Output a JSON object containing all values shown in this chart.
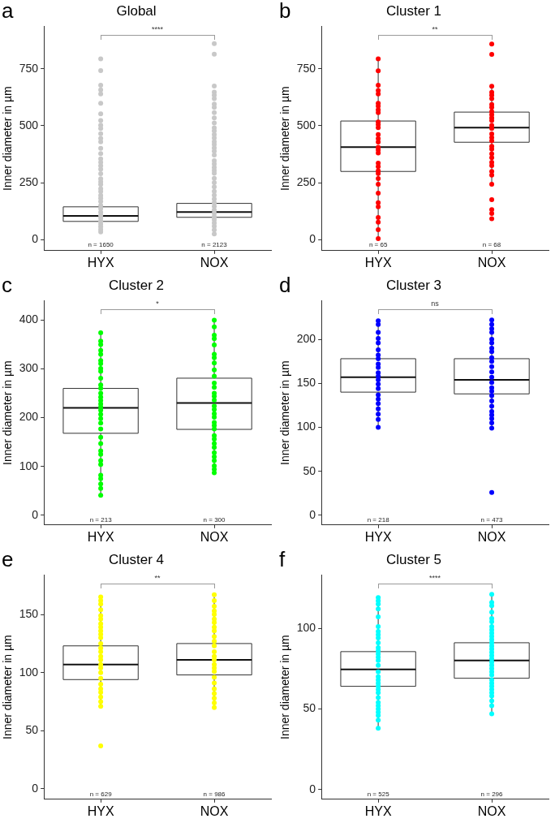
{
  "chart_data": [
    {
      "type": "box",
      "title": "Global",
      "ylabel": "Inner diameter in µm",
      "categories": [
        "HYX",
        "NOX"
      ],
      "ylim": [
        -47,
        936
      ],
      "yticks": [
        0,
        250,
        500,
        750
      ],
      "grid": false,
      "legend": false,
      "marker": "circle",
      "annotations": [
        "a",
        "****",
        "n = 1650",
        "n = 2123"
      ],
      "boxes": [
        {
          "low": 35,
          "q1": 81,
          "median": 105,
          "q3": 145,
          "high": 235
        },
        {
          "low": 26,
          "q1": 99,
          "median": 122,
          "q3": 160,
          "high": 250
        }
      ],
      "series": [
        {
          "type": "scatter",
          "color": "#c8c8c8",
          "x": [
            "HYX",
            "HYX",
            "HYX",
            "HYX",
            "HYX",
            "HYX",
            "HYX",
            "HYX",
            "HYX",
            "HYX",
            "HYX",
            "HYX",
            "HYX",
            "HYX",
            "HYX",
            "HYX",
            "HYX",
            "HYX",
            "HYX",
            "HYX",
            "HYX",
            "HYX",
            "HYX",
            "HYX",
            "HYX",
            "HYX",
            "HYX",
            "HYX",
            "HYX",
            "HYX",
            "HYX",
            "HYX",
            "HYX",
            "HYX",
            "HYX",
            "HYX",
            "HYX",
            "HYX"
          ],
          "values": [
            793,
            742,
            678,
            657,
            640,
            599,
            552,
            523,
            503,
            488,
            465,
            445,
            430,
            401,
            378,
            355,
            340,
            325,
            310,
            290,
            268,
            255,
            243,
            224,
            212,
            195,
            183,
            168,
            151,
            137,
            121,
            108,
            96,
            83,
            70,
            58,
            46,
            35
          ]
        },
        {
          "type": "scatter",
          "color": "#c8c8c8",
          "x": [
            "NOX",
            "NOX",
            "NOX",
            "NOX",
            "NOX",
            "NOX",
            "NOX",
            "NOX",
            "NOX",
            "NOX",
            "NOX",
            "NOX",
            "NOX",
            "NOX",
            "NOX",
            "NOX",
            "NOX",
            "NOX",
            "NOX",
            "NOX",
            "NOX",
            "NOX",
            "NOX",
            "NOX",
            "NOX",
            "NOX",
            "NOX",
            "NOX",
            "NOX",
            "NOX",
            "NOX",
            "NOX",
            "NOX",
            "NOX",
            "NOX",
            "NOX",
            "NOX",
            "NOX",
            "NOX",
            "NOX",
            "NOX"
          ],
          "values": [
            860,
            814,
            674,
            648,
            634,
            619,
            595,
            581,
            558,
            535,
            512,
            491,
            478,
            462,
            447,
            431,
            418,
            403,
            389,
            372,
            347,
            333,
            318,
            304,
            292,
            270,
            251,
            232,
            213,
            196,
            179,
            163,
            147,
            131,
            117,
            102,
            88,
            74,
            60,
            44,
            26
          ]
        }
      ]
    },
    {
      "type": "box",
      "title": "Cluster 1",
      "ylabel": "Inner diameter in µm",
      "categories": [
        "HYX",
        "NOX"
      ],
      "ylim": [
        -47,
        936
      ],
      "yticks": [
        0,
        250,
        500,
        750
      ],
      "grid": false,
      "legend": false,
      "marker": "circle",
      "annotations": [
        "b",
        "**",
        "n = 65",
        "n = 68"
      ],
      "boxes": [
        {
          "low": 6,
          "q1": 300,
          "median": 407,
          "q3": 521,
          "high": 793
        },
        {
          "low": 244,
          "q1": 428,
          "median": 492,
          "q3": 560,
          "high": 673
        }
      ],
      "series": [
        {
          "type": "scatter",
          "color": "#ff0000",
          "x": [
            "HYX",
            "HYX",
            "HYX",
            "HYX",
            "HYX",
            "HYX",
            "HYX",
            "HYX",
            "HYX",
            "HYX",
            "HYX",
            "HYX",
            "HYX",
            "HYX",
            "HYX",
            "HYX",
            "HYX",
            "HYX",
            "HYX",
            "HYX",
            "HYX",
            "HYX",
            "HYX",
            "HYX",
            "HYX",
            "HYX",
            "HYX",
            "HYX",
            "HYX",
            "HYX",
            "HYX"
          ],
          "values": [
            793,
            741,
            678,
            655,
            640,
            599,
            586,
            570,
            558,
            517,
            505,
            492,
            462,
            444,
            429,
            406,
            394,
            381,
            336,
            321,
            303,
            291,
            269,
            244,
            205,
            163,
            145,
            98,
            78,
            45,
            6
          ]
        },
        {
          "type": "scatter",
          "color": "#ff0000",
          "x": [
            "NOX",
            "NOX",
            "NOX",
            "NOX",
            "NOX",
            "NOX",
            "NOX",
            "NOX",
            "NOX",
            "NOX",
            "NOX",
            "NOX",
            "NOX",
            "NOX",
            "NOX",
            "NOX",
            "NOX",
            "NOX",
            "NOX",
            "NOX",
            "NOX",
            "NOX",
            "NOX",
            "NOX",
            "NOX",
            "NOX",
            "NOX",
            "NOX",
            "NOX",
            "NOX"
          ],
          "values": [
            858,
            813,
            673,
            647,
            634,
            619,
            593,
            581,
            562,
            549,
            535,
            523,
            502,
            488,
            464,
            448,
            434,
            410,
            398,
            377,
            360,
            340,
            326,
            300,
            284,
            244,
            176,
            133,
            116,
            93
          ]
        }
      ]
    },
    {
      "type": "box",
      "title": "Cluster 2",
      "ylabel": "Inner diameter in µm",
      "categories": [
        "HYX",
        "NOX"
      ],
      "ylim": [
        -20,
        440
      ],
      "yticks": [
        0,
        100,
        200,
        300,
        400
      ],
      "grid": false,
      "legend": false,
      "marker": "circle",
      "annotations": [
        "c",
        "*",
        "n = 213",
        "n = 300"
      ],
      "boxes": [
        {
          "low": 41,
          "q1": 168,
          "median": 220,
          "q3": 260,
          "high": 374
        },
        {
          "low": 87,
          "q1": 176,
          "median": 230,
          "q3": 281,
          "high": 400
        }
      ],
      "series": [
        {
          "type": "scatter",
          "color": "#00ff00",
          "x": [
            "HYX",
            "HYX",
            "HYX",
            "HYX",
            "HYX",
            "HYX",
            "HYX",
            "HYX",
            "HYX",
            "HYX",
            "HYX",
            "HYX",
            "HYX",
            "HYX",
            "HYX",
            "HYX",
            "HYX",
            "HYX",
            "HYX",
            "HYX",
            "HYX",
            "HYX",
            "HYX",
            "HYX",
            "HYX",
            "HYX",
            "HYX",
            "HYX",
            "HYX",
            "HYX",
            "HYX",
            "HYX",
            "HYX"
          ],
          "values": [
            374,
            357,
            350,
            338,
            330,
            317,
            311,
            301,
            295,
            281,
            267,
            260,
            250,
            242,
            235,
            228,
            222,
            215,
            207,
            198,
            189,
            177,
            160,
            147,
            132,
            125,
            112,
            104,
            82,
            75,
            64,
            55,
            41
          ]
        },
        {
          "type": "scatter",
          "color": "#00ff00",
          "x": [
            "NOX",
            "NOX",
            "NOX",
            "NOX",
            "NOX",
            "NOX",
            "NOX",
            "NOX",
            "NOX",
            "NOX",
            "NOX",
            "NOX",
            "NOX",
            "NOX",
            "NOX",
            "NOX",
            "NOX",
            "NOX",
            "NOX",
            "NOX",
            "NOX",
            "NOX",
            "NOX",
            "NOX",
            "NOX",
            "NOX",
            "NOX",
            "NOX",
            "NOX",
            "NOX",
            "NOX",
            "NOX"
          ],
          "values": [
            400,
            386,
            369,
            362,
            349,
            330,
            323,
            312,
            298,
            285,
            271,
            262,
            250,
            244,
            236,
            224,
            217,
            208,
            201,
            190,
            184,
            177,
            163,
            156,
            147,
            139,
            128,
            120,
            112,
            101,
            94,
            87
          ]
        }
      ]
    },
    {
      "type": "box",
      "title": "Cluster 3",
      "ylabel": "Inner diameter in µm",
      "categories": [
        "HYX",
        "NOX"
      ],
      "ylim": [
        -11,
        244
      ],
      "yticks": [
        0,
        50,
        100,
        150,
        200
      ],
      "grid": false,
      "legend": false,
      "marker": "circle",
      "annotations": [
        "d",
        "ns",
        "n = 218",
        "n = 473"
      ],
      "boxes": [
        {
          "low": 100,
          "q1": 140,
          "median": 157,
          "q3": 178,
          "high": 221
        },
        {
          "low": 99,
          "q1": 138,
          "median": 154,
          "q3": 178,
          "high": 222
        }
      ],
      "series": [
        {
          "type": "scatter",
          "color": "#0000ff",
          "x": [
            "HYX",
            "HYX",
            "HYX",
            "HYX",
            "HYX",
            "HYX",
            "HYX",
            "HYX",
            "HYX",
            "HYX",
            "HYX",
            "HYX",
            "HYX",
            "HYX",
            "HYX",
            "HYX",
            "HYX",
            "HYX",
            "HYX",
            "HYX",
            "HYX",
            "HYX"
          ],
          "values": [
            221,
            217,
            208,
            201,
            196,
            188,
            182,
            178,
            172,
            168,
            162,
            158,
            154,
            149,
            144,
            137,
            132,
            127,
            121,
            115,
            109,
            100
          ]
        },
        {
          "type": "scatter",
          "color": "#0000ff",
          "x": [
            "NOX",
            "NOX",
            "NOX",
            "NOX",
            "NOX",
            "NOX",
            "NOX",
            "NOX",
            "NOX",
            "NOX",
            "NOX",
            "NOX",
            "NOX",
            "NOX",
            "NOX",
            "NOX",
            "NOX",
            "NOX",
            "NOX",
            "NOX",
            "NOX",
            "NOX",
            "NOX",
            "NOX",
            "NOX"
          ],
          "values": [
            222,
            217,
            212,
            208,
            200,
            196,
            190,
            186,
            179,
            175,
            169,
            163,
            157,
            151,
            145,
            141,
            136,
            130,
            124,
            118,
            114,
            110,
            105,
            99,
            26
          ]
        }
      ]
    },
    {
      "type": "box",
      "title": "Cluster 4",
      "ylabel": "Inner diameter in µm",
      "categories": [
        "HYX",
        "NOX"
      ],
      "ylim": [
        -9,
        184
      ],
      "yticks": [
        0,
        50,
        100,
        150
      ],
      "grid": false,
      "legend": false,
      "marker": "circle",
      "annotations": [
        "e",
        "**",
        "n = 629",
        "n = 986"
      ],
      "boxes": [
        {
          "low": 71,
          "q1": 94,
          "median": 107,
          "q3": 123,
          "high": 165
        },
        {
          "low": 70,
          "q1": 98,
          "median": 111,
          "q3": 125,
          "high": 165
        }
      ],
      "series": [
        {
          "type": "scatter",
          "color": "#ffff00",
          "x": [
            "HYX",
            "HYX",
            "HYX",
            "HYX",
            "HYX",
            "HYX",
            "HYX",
            "HYX",
            "HYX",
            "HYX",
            "HYX",
            "HYX",
            "HYX",
            "HYX",
            "HYX",
            "HYX",
            "HYX",
            "HYX",
            "HYX",
            "HYX",
            "HYX",
            "HYX",
            "HYX",
            "HYX",
            "HYX",
            "HYX",
            "HYX"
          ],
          "values": [
            165,
            162,
            159,
            154,
            149,
            146,
            142,
            139,
            136,
            133,
            130,
            125,
            121,
            118,
            114,
            111,
            107,
            104,
            100,
            95,
            90,
            86,
            83,
            79,
            75,
            71,
            37
          ]
        },
        {
          "type": "scatter",
          "color": "#ffff00",
          "x": [
            "NOX",
            "NOX",
            "NOX",
            "NOX",
            "NOX",
            "NOX",
            "NOX",
            "NOX",
            "NOX",
            "NOX",
            "NOX",
            "NOX",
            "NOX",
            "NOX",
            "NOX",
            "NOX",
            "NOX",
            "NOX",
            "NOX",
            "NOX",
            "NOX",
            "NOX",
            "NOX",
            "NOX",
            "NOX"
          ],
          "values": [
            167,
            162,
            157,
            153,
            150,
            146,
            143,
            139,
            136,
            131,
            127,
            123,
            118,
            114,
            111,
            107,
            104,
            101,
            96,
            91,
            86,
            82,
            78,
            74,
            70
          ]
        }
      ]
    },
    {
      "type": "box",
      "title": "Cluster 5",
      "ylabel": "Inner diameter in µm",
      "categories": [
        "HYX",
        "NOX"
      ],
      "ylim": [
        -6,
        133
      ],
      "yticks": [
        0,
        50,
        100
      ],
      "grid": false,
      "legend": false,
      "marker": "circle",
      "annotations": [
        "f",
        "****",
        "n = 525",
        "n = 296"
      ],
      "boxes": [
        {
          "low": 38,
          "q1": 64,
          "median": 74.5,
          "q3": 85.5,
          "high": 117
        },
        {
          "low": 47,
          "q1": 69,
          "median": 80,
          "q3": 91,
          "high": 121
        }
      ],
      "series": [
        {
          "type": "scatter",
          "color": "#00ffff",
          "x": [
            "HYX",
            "HYX",
            "HYX",
            "HYX",
            "HYX",
            "HYX",
            "HYX",
            "HYX",
            "HYX",
            "HYX",
            "HYX",
            "HYX",
            "HYX",
            "HYX",
            "HYX",
            "HYX",
            "HYX",
            "HYX",
            "HYX",
            "HYX",
            "HYX",
            "HYX",
            "HYX",
            "HYX",
            "HYX",
            "HYX",
            "HYX",
            "HYX",
            "HYX",
            "HYX",
            "HYX"
          ],
          "values": [
            119,
            117,
            115,
            112,
            107,
            101,
            98,
            96,
            94,
            91,
            88,
            86,
            84,
            82,
            80,
            77,
            73,
            70,
            68,
            66,
            64,
            62,
            60,
            57,
            54,
            52,
            50,
            48,
            46,
            43,
            38
          ]
        },
        {
          "type": "scatter",
          "color": "#00ffff",
          "x": [
            "NOX",
            "NOX",
            "NOX",
            "NOX",
            "NOX",
            "NOX",
            "NOX",
            "NOX",
            "NOX",
            "NOX",
            "NOX",
            "NOX",
            "NOX",
            "NOX",
            "NOX",
            "NOX",
            "NOX",
            "NOX",
            "NOX",
            "NOX",
            "NOX",
            "NOX",
            "NOX",
            "NOX",
            "NOX",
            "NOX",
            "NOX",
            "NOX",
            "NOX",
            "NOX",
            "NOX"
          ],
          "values": [
            121,
            116,
            114,
            110,
            106,
            104,
            101,
            99,
            97,
            95,
            93,
            91,
            89,
            87,
            85,
            83,
            81,
            79,
            77,
            75,
            73,
            71,
            68,
            66,
            64,
            62,
            60,
            58,
            55,
            52,
            47
          ]
        }
      ]
    }
  ]
}
